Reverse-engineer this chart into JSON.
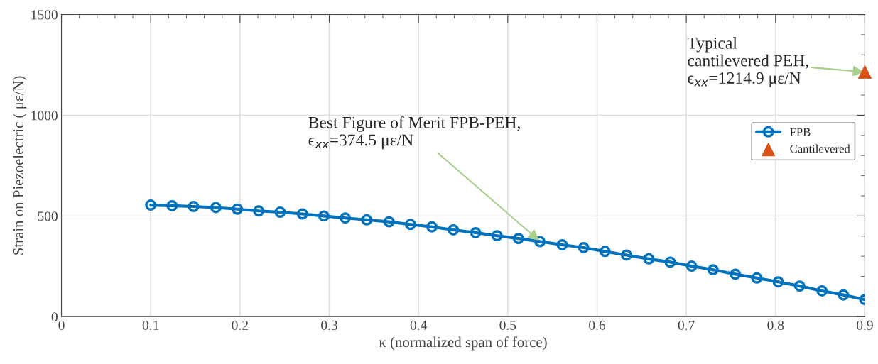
{
  "chart_data": {
    "type": "line",
    "xlabel": "κ (normalized span of force)",
    "ylabel": "Strain on Piezoelectric ( με/N)",
    "x": [
      0.1,
      0.124,
      0.148,
      0.173,
      0.197,
      0.221,
      0.245,
      0.27,
      0.294,
      0.318,
      0.342,
      0.367,
      0.391,
      0.415,
      0.439,
      0.464,
      0.488,
      0.512,
      0.536,
      0.561,
      0.585,
      0.609,
      0.633,
      0.658,
      0.682,
      0.706,
      0.73,
      0.755,
      0.779,
      0.803,
      0.827,
      0.852,
      0.876,
      0.9
    ],
    "series": [
      {
        "name": "FPB",
        "color": "#0072bd",
        "marker": "circle",
        "line_style": "solid",
        "values": [
          554,
          551,
          547,
          542,
          534,
          525,
          519,
          510,
          500,
          490,
          481,
          471,
          458,
          446,
          431,
          417,
          402,
          388,
          373,
          357,
          343,
          324,
          306,
          287,
          271,
          251,
          233,
          211,
          192,
          173,
          152,
          128,
          108,
          85
        ]
      },
      {
        "name": "Cantilevered",
        "type": "scatter",
        "color": "#d95319",
        "marker": "triangle",
        "x": [
          0.9
        ],
        "values": [
          1214.9
        ]
      }
    ],
    "annotations": [
      {
        "text": "Best Figure of Merit FPB-PEH,\nϵ$_{xx}$=374.5 με/N",
        "x": 0.536,
        "y": 374.5
      },
      {
        "text": "Typical\ncantilevered PEH,\nϵ$_{xx}$=1214.9 με/N",
        "x": 0.9,
        "y": 1214.9
      }
    ],
    "xlim": [
      0,
      0.9
    ],
    "ylim": [
      0,
      1500
    ],
    "xticks": [
      0,
      0.1,
      0.2,
      0.3,
      0.4,
      0.5,
      0.6,
      0.7,
      0.8,
      0.9
    ],
    "yticks": [
      0,
      500,
      1000,
      1500
    ],
    "grid": true,
    "legend": "right"
  }
}
